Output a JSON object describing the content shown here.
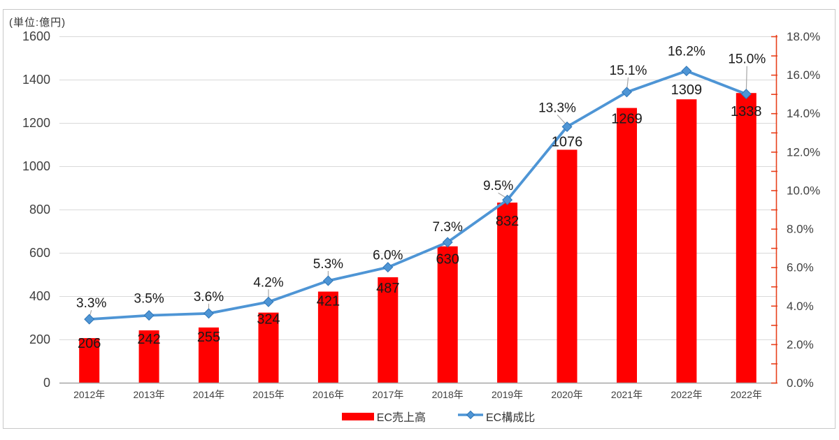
{
  "chart_data": {
    "type": "combo",
    "categories": [
      "2012年",
      "2013年",
      "2014年",
      "2015年",
      "2016年",
      "2017年",
      "2018年",
      "2019年",
      "2020年",
      "2021年",
      "2022年",
      "2022年"
    ],
    "series": [
      {
        "name": "EC売上高",
        "type": "bar",
        "axis": "left",
        "color": "#ff0000",
        "values": [
          206,
          242,
          255,
          324,
          421,
          487,
          630,
          832,
          1076,
          1269,
          1309,
          1338
        ],
        "labels": [
          "206",
          "242",
          "255",
          "324",
          "421",
          "487",
          "630",
          "832",
          "1076",
          "1269",
          "1309",
          "1338"
        ]
      },
      {
        "name": "EC構成比",
        "type": "line",
        "axis": "right",
        "color": "#4e95d5",
        "marker": "diamond",
        "values": [
          3.3,
          3.5,
          3.6,
          4.2,
          5.3,
          6.0,
          7.3,
          9.5,
          13.3,
          15.1,
          16.2,
          15.0
        ],
        "labels": [
          "3.3%",
          "3.5%",
          "3.6%",
          "4.2%",
          "5.3%",
          "6.0%",
          "7.3%",
          "9.5%",
          "13.3%",
          "15.1%",
          "16.2%",
          "15.0%"
        ]
      }
    ],
    "left_axis": {
      "unit_label": "(単位:億円)",
      "min": 0,
      "max": 1600,
      "step": 200,
      "tick_labels": [
        "0",
        "200",
        "400",
        "600",
        "800",
        "1000",
        "1200",
        "1400",
        "1600"
      ]
    },
    "right_axis": {
      "min": 0,
      "max": 18,
      "major_step": 2,
      "minor_step": 1,
      "color": "#e8401c",
      "tick_labels": [
        "0.0%",
        "2.0%",
        "4.0%",
        "6.0%",
        "8.0%",
        "10.0%",
        "12.0%",
        "14.0%",
        "16.0%",
        "18.0%"
      ]
    },
    "legend": {
      "position": "bottom",
      "items": [
        "EC売上高",
        "EC構成比"
      ]
    },
    "grid": true,
    "gridline_color": "#d9d9d9",
    "baseline_color": "#a6a6a6",
    "label_color": "#1a1a1a",
    "axis_text_color": "#404040"
  }
}
